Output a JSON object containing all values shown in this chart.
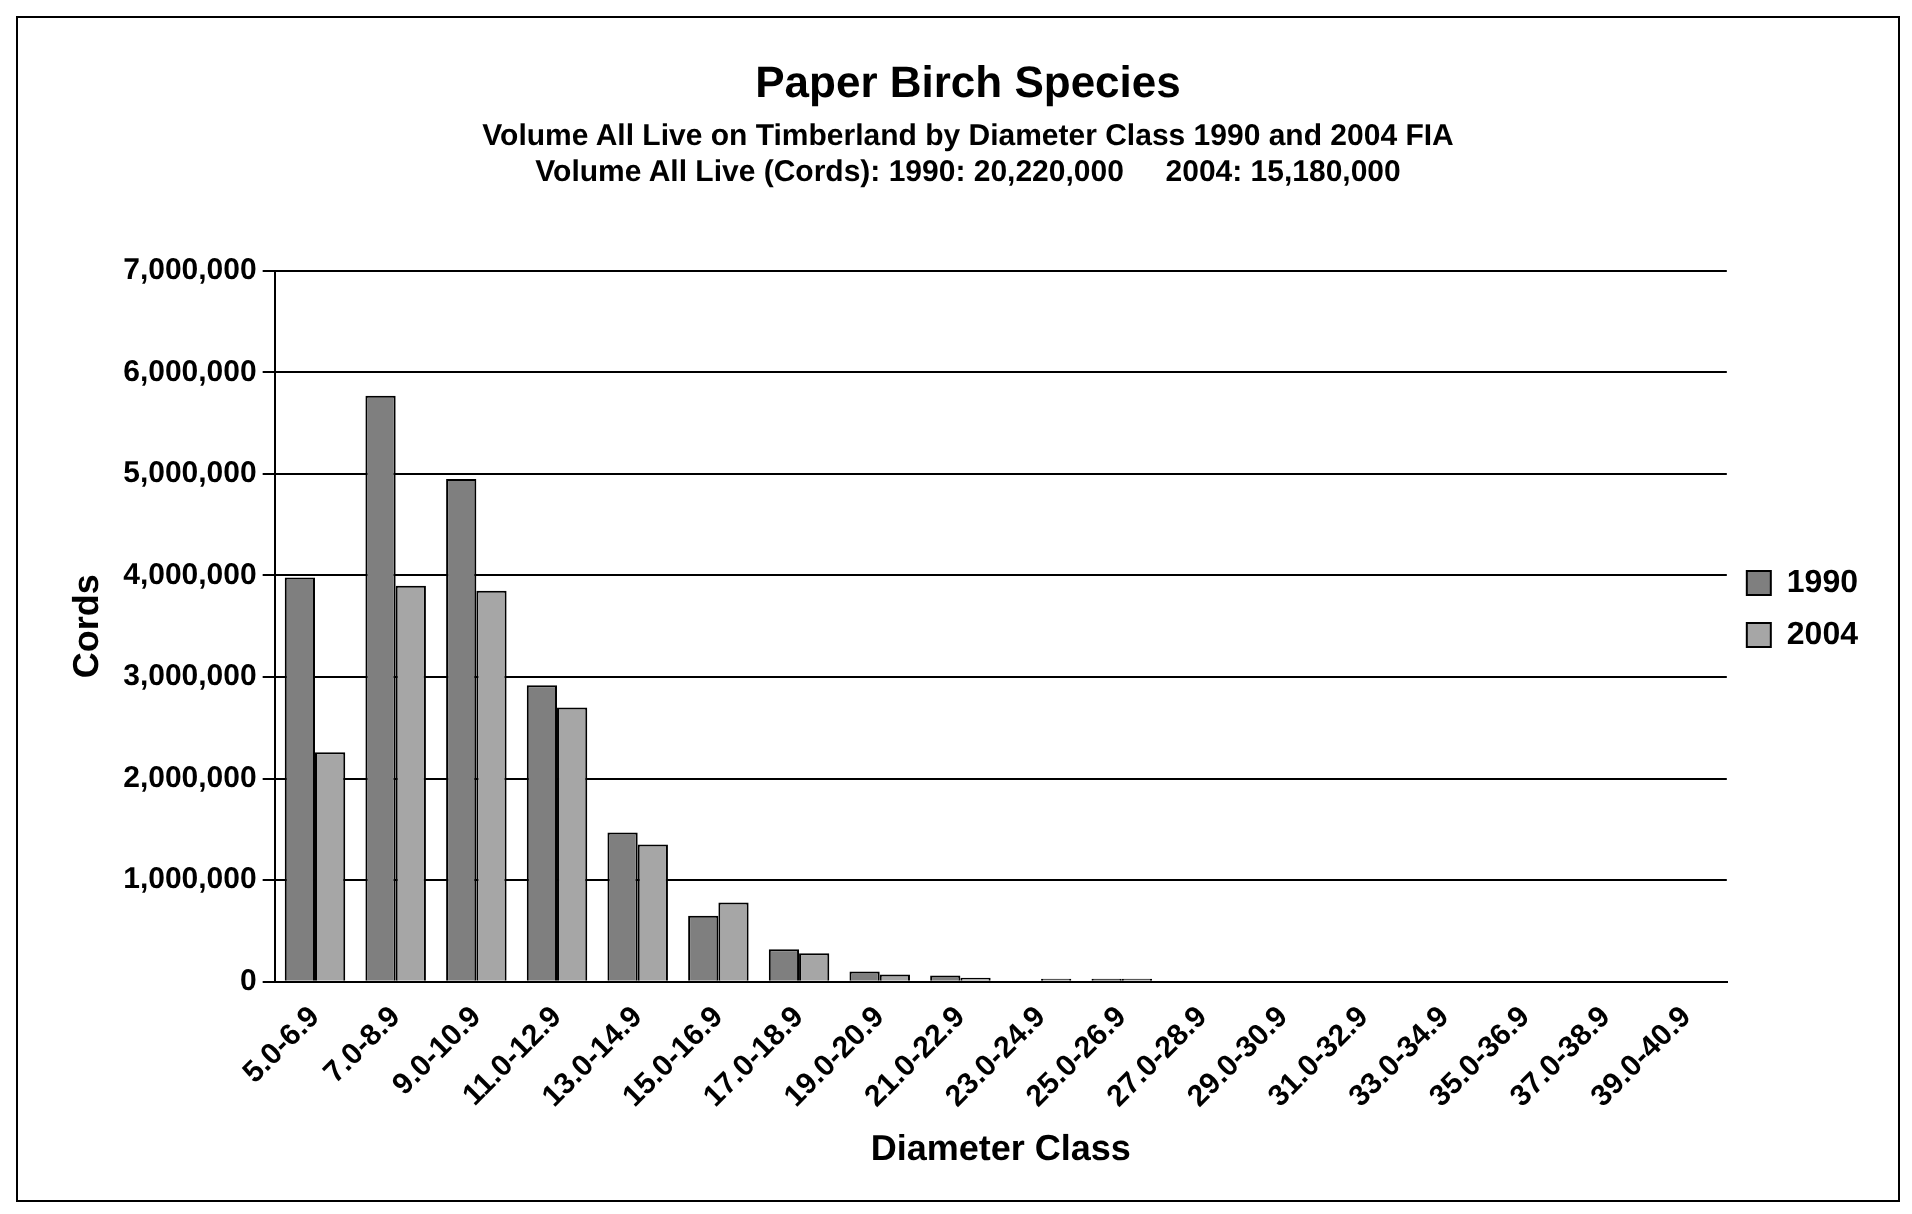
{
  "chart_data": {
    "type": "bar",
    "title": "Paper Birch Species",
    "subtitle": "Volume All Live on Timberland by Diameter Class 1990 and 2004 FIA\nVolume All Live (Cords): 1990: 20,220,000     2004: 15,180,000",
    "xlabel": "Diameter Class",
    "ylabel": "Cords",
    "categories": [
      "5.0-6.9",
      "7.0-8.9",
      "9.0-10.9",
      "11.0-12.9",
      "13.0-14.9",
      "15.0-16.9",
      "17.0-18.9",
      "19.0-20.9",
      "21.0-22.9",
      "23.0-24.9",
      "25.0-26.9",
      "27.0-28.9",
      "29.0-30.9",
      "31.0-32.9",
      "33.0-34.9",
      "35.0-36.9",
      "37.0-38.9",
      "39.0-40.9"
    ],
    "series": [
      {
        "name": "1990",
        "color": "#7f7f7f",
        "values": [
          3980000,
          5770000,
          4950000,
          2920000,
          1470000,
          650000,
          320000,
          100000,
          60000,
          null,
          30000,
          0,
          null,
          0,
          0,
          0,
          0,
          0
        ]
      },
      {
        "name": "2004",
        "color": "#a6a6a6",
        "values": [
          2260000,
          3900000,
          3850000,
          2700000,
          1350000,
          780000,
          280000,
          70000,
          40000,
          30000,
          30000,
          0,
          0,
          0,
          0,
          0,
          0,
          0
        ]
      }
    ],
    "ylim": [
      0,
      7000000
    ],
    "yticks": [
      0,
      {
        "value": 1000000,
        "label": "1,000,000"
      },
      {
        "value": 2000000,
        "label": "2,000,000"
      },
      {
        "value": 3000000,
        "label": "3,000,000"
      },
      {
        "value": 4000000,
        "label": "4,000,000"
      },
      {
        "value": 5000000,
        "label": "5,000,000"
      },
      {
        "value": 6000000,
        "label": "6,000,000"
      },
      {
        "value": 7000000,
        "label": "7,000,000"
      }
    ],
    "grid": "y",
    "legend": "right"
  }
}
